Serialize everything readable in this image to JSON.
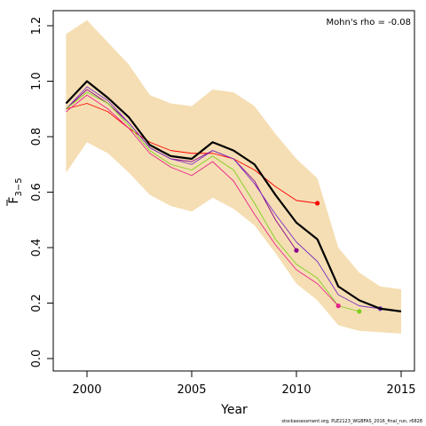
{
  "chart_data": {
    "type": "line",
    "xlabel": "Year",
    "ylabel_main": "F",
    "ylabel_sub": "3−5",
    "xlim": [
      1999,
      2015
    ],
    "ylim": [
      0.0,
      1.2
    ],
    "xticks": [
      2000,
      2005,
      2010,
      2015
    ],
    "yticks": [
      0.0,
      0.2,
      0.4,
      0.6,
      0.8,
      1.0,
      1.2
    ],
    "annotation": "Mohn's rho = -0.08",
    "band": {
      "color": "#f5deb3",
      "x": [
        1999,
        2000,
        2001,
        2002,
        2003,
        2004,
        2005,
        2006,
        2007,
        2008,
        2009,
        2010,
        2011,
        2012,
        2013,
        2014,
        2015
      ],
      "upper": [
        1.17,
        1.22,
        1.14,
        1.06,
        0.95,
        0.92,
        0.91,
        0.97,
        0.96,
        0.91,
        0.81,
        0.72,
        0.65,
        0.4,
        0.31,
        0.26,
        0.25
      ],
      "lower": [
        0.67,
        0.78,
        0.74,
        0.67,
        0.59,
        0.55,
        0.53,
        0.58,
        0.54,
        0.48,
        0.38,
        0.27,
        0.21,
        0.12,
        0.1,
        0.095,
        0.09
      ]
    },
    "series": [
      {
        "color": "#000000",
        "width": 2.2,
        "endpoint": false,
        "x": [
          1999,
          2000,
          2001,
          2002,
          2003,
          2004,
          2005,
          2006,
          2007,
          2008,
          2009,
          2010,
          2011,
          2012,
          2013,
          2014,
          2015
        ],
        "values": [
          0.92,
          1.0,
          0.94,
          0.87,
          0.77,
          0.73,
          0.72,
          0.78,
          0.75,
          0.7,
          0.59,
          0.49,
          0.43,
          0.26,
          0.21,
          0.18,
          0.17
        ]
      },
      {
        "color": "#ff0000",
        "width": 0.9,
        "endpoint": true,
        "x": [
          1999,
          2000,
          2001,
          2002,
          2003,
          2004,
          2005,
          2006,
          2007,
          2008,
          2009,
          2010,
          2011
        ],
        "values": [
          0.9,
          0.92,
          0.89,
          0.83,
          0.78,
          0.75,
          0.74,
          0.74,
          0.72,
          0.68,
          0.62,
          0.57,
          0.56
        ]
      },
      {
        "color": "#8b008b",
        "width": 0.9,
        "endpoint": true,
        "x": [
          1999,
          2000,
          2001,
          2002,
          2003,
          2004,
          2005,
          2006,
          2007,
          2008,
          2009,
          2010
        ],
        "values": [
          0.9,
          0.97,
          0.92,
          0.85,
          0.76,
          0.72,
          0.71,
          0.75,
          0.72,
          0.64,
          0.5,
          0.39
        ]
      },
      {
        "color": "#7b2fbf",
        "width": 0.9,
        "endpoint": true,
        "x": [
          1999,
          2000,
          2001,
          2002,
          2003,
          2004,
          2005,
          2006,
          2007,
          2008,
          2009,
          2010,
          2011,
          2012,
          2013,
          2014
        ],
        "values": [
          0.9,
          0.98,
          0.93,
          0.85,
          0.76,
          0.72,
          0.7,
          0.75,
          0.72,
          0.63,
          0.52,
          0.42,
          0.35,
          0.23,
          0.19,
          0.18
        ]
      },
      {
        "color": "#7fcf1f",
        "width": 0.9,
        "endpoint": true,
        "x": [
          1999,
          2000,
          2001,
          2002,
          2003,
          2004,
          2005,
          2006,
          2007,
          2008,
          2009,
          2010,
          2011,
          2012,
          2013
        ],
        "values": [
          0.9,
          0.96,
          0.92,
          0.84,
          0.75,
          0.7,
          0.68,
          0.73,
          0.68,
          0.56,
          0.43,
          0.34,
          0.29,
          0.19,
          0.17
        ]
      },
      {
        "color": "#e8208a",
        "width": 0.9,
        "endpoint": true,
        "x": [
          1999,
          2000,
          2001,
          2002,
          2003,
          2004,
          2005,
          2006,
          2007,
          2008,
          2009,
          2010,
          2011,
          2012
        ],
        "values": [
          0.89,
          0.95,
          0.9,
          0.83,
          0.74,
          0.69,
          0.66,
          0.71,
          0.64,
          0.52,
          0.41,
          0.32,
          0.27,
          0.19
        ]
      }
    ]
  },
  "footer": "stockassessment.org, PLE2123_WGBFAS_2016_final_run, r6828"
}
